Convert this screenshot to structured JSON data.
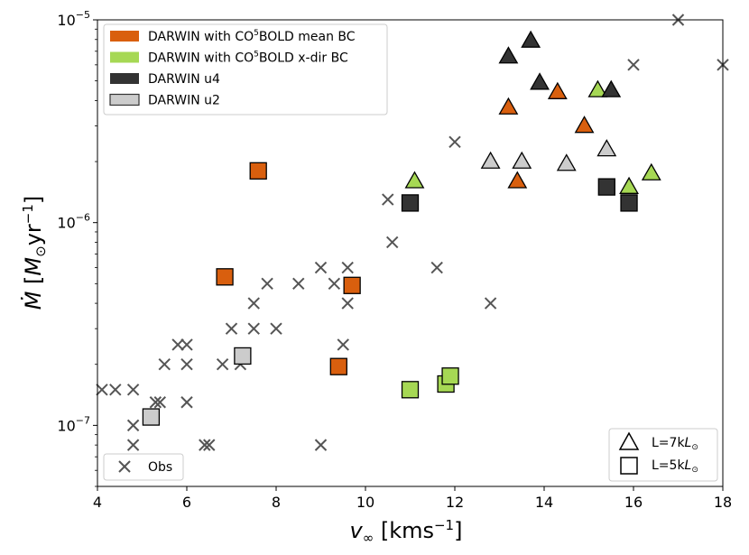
{
  "chart_data": {
    "type": "scatter",
    "xlabel": "v∞ [kms⁻¹]",
    "ylabel": "Ṁ [M⊙yr⁻¹]",
    "xlim": [
      4,
      18
    ],
    "ylim": [
      5e-08,
      1e-05
    ],
    "yscale": "log",
    "grid": false,
    "xticks": [
      4,
      6,
      8,
      10,
      12,
      14,
      16,
      18
    ],
    "xtick_labels": [
      "4",
      "6",
      "8",
      "10",
      "12",
      "14",
      "16",
      "18"
    ],
    "yticks": [
      1e-07,
      1e-06,
      1e-05
    ],
    "ytick_labels": [
      {
        "base": "10",
        "exp": "−7"
      },
      {
        "base": "10",
        "exp": "−6"
      },
      {
        "base": "10",
        "exp": "−5"
      }
    ],
    "colors": {
      "mean": "#d95f0e",
      "xdir": "#a6d854",
      "u4": "#333333",
      "u2": "#cccccc",
      "obs": "#555555"
    },
    "legend_main": {
      "position": "upper-left",
      "entries": [
        {
          "key": "mean",
          "pre": "DARWIN with CO",
          "sup": "5",
          "post": "BOLD mean BC"
        },
        {
          "key": "xdir",
          "pre": "DARWIN with CO",
          "sup": "5",
          "post": "BOLD x-dir BC"
        },
        {
          "key": "u4",
          "pre": "DARWIN u4",
          "sup": "",
          "post": ""
        },
        {
          "key": "u2",
          "pre": "DARWIN u2",
          "sup": "",
          "post": ""
        }
      ]
    },
    "legend_obs": {
      "position": "lower-left",
      "label": "Obs"
    },
    "legend_shapes": {
      "position": "lower-right",
      "entries": [
        {
          "marker": "triangle",
          "pre": "L=7k",
          "sym": "L",
          "sub": "⊙"
        },
        {
          "marker": "square",
          "pre": "L=5k",
          "sym": "L",
          "sub": "⊙"
        }
      ]
    },
    "series": [
      {
        "name": "Obs",
        "marker": "x",
        "color_key": "obs",
        "points": [
          [
            4.1,
            1.5e-07
          ],
          [
            4.4,
            1.5e-07
          ],
          [
            4.8,
            1.5e-07
          ],
          [
            4.8,
            1e-07
          ],
          [
            4.8,
            8e-08
          ],
          [
            5.3,
            1.3e-07
          ],
          [
            5.4,
            1.3e-07
          ],
          [
            5.5,
            2e-07
          ],
          [
            5.8,
            2.5e-07
          ],
          [
            6.0,
            2.5e-07
          ],
          [
            6.0,
            2e-07
          ],
          [
            6.0,
            1.3e-07
          ],
          [
            6.4,
            8e-08
          ],
          [
            6.5,
            8e-08
          ],
          [
            6.8,
            2e-07
          ],
          [
            7.0,
            3e-07
          ],
          [
            7.2,
            2e-07
          ],
          [
            7.5,
            3e-07
          ],
          [
            7.5,
            4e-07
          ],
          [
            7.8,
            5e-07
          ],
          [
            8.0,
            3e-07
          ],
          [
            8.5,
            5e-07
          ],
          [
            9.0,
            6e-07
          ],
          [
            9.0,
            8e-08
          ],
          [
            9.3,
            5e-07
          ],
          [
            9.5,
            2.5e-07
          ],
          [
            9.6,
            6e-07
          ],
          [
            9.6,
            4e-07
          ],
          [
            10.5,
            1.3e-06
          ],
          [
            10.6,
            8e-07
          ],
          [
            11.6,
            6e-07
          ],
          [
            12.0,
            2.5e-06
          ],
          [
            12.8,
            4e-07
          ],
          [
            16.0,
            6e-06
          ],
          [
            17.0,
            1e-05
          ],
          [
            18.0,
            6e-06
          ]
        ]
      },
      {
        "name": "DARWIN with CO5BOLD mean BC",
        "color_key": "mean",
        "points_triangle": [
          [
            13.2,
            3.7e-06
          ],
          [
            13.4,
            1.6e-06
          ],
          [
            14.3,
            4.4e-06
          ],
          [
            14.9,
            3e-06
          ]
        ],
        "points_square": [
          [
            7.6,
            1.8e-06
          ],
          [
            6.85,
            5.4e-07
          ],
          [
            9.7,
            4.9e-07
          ],
          [
            9.4,
            1.95e-07
          ]
        ]
      },
      {
        "name": "DARWIN with CO5BOLD x-dir BC",
        "color_key": "xdir",
        "points_triangle": [
          [
            11.1,
            1.6e-06
          ],
          [
            15.2,
            4.5e-06
          ],
          [
            15.9,
            1.5e-06
          ],
          [
            16.4,
            1.75e-06
          ]
        ],
        "points_square": [
          [
            11.0,
            1.5e-07
          ],
          [
            11.8,
            1.6e-07
          ],
          [
            11.9,
            1.75e-07
          ]
        ]
      },
      {
        "name": "DARWIN u4",
        "color_key": "u4",
        "points_triangle": [
          [
            13.2,
            6.6e-06
          ],
          [
            13.7,
            7.9e-06
          ],
          [
            13.9,
            4.9e-06
          ],
          [
            15.5,
            4.5e-06
          ]
        ],
        "points_square": [
          [
            11.0,
            1.25e-06
          ],
          [
            15.4,
            1.5e-06
          ],
          [
            15.9,
            1.25e-06
          ]
        ]
      },
      {
        "name": "DARWIN u2",
        "color_key": "u2",
        "points_triangle": [
          [
            12.8,
            2e-06
          ],
          [
            13.5,
            2e-06
          ],
          [
            14.5,
            1.95e-06
          ],
          [
            15.4,
            2.3e-06
          ]
        ],
        "points_square": [
          [
            5.2,
            1.1e-07
          ],
          [
            7.25,
            2.2e-07
          ]
        ]
      }
    ]
  }
}
